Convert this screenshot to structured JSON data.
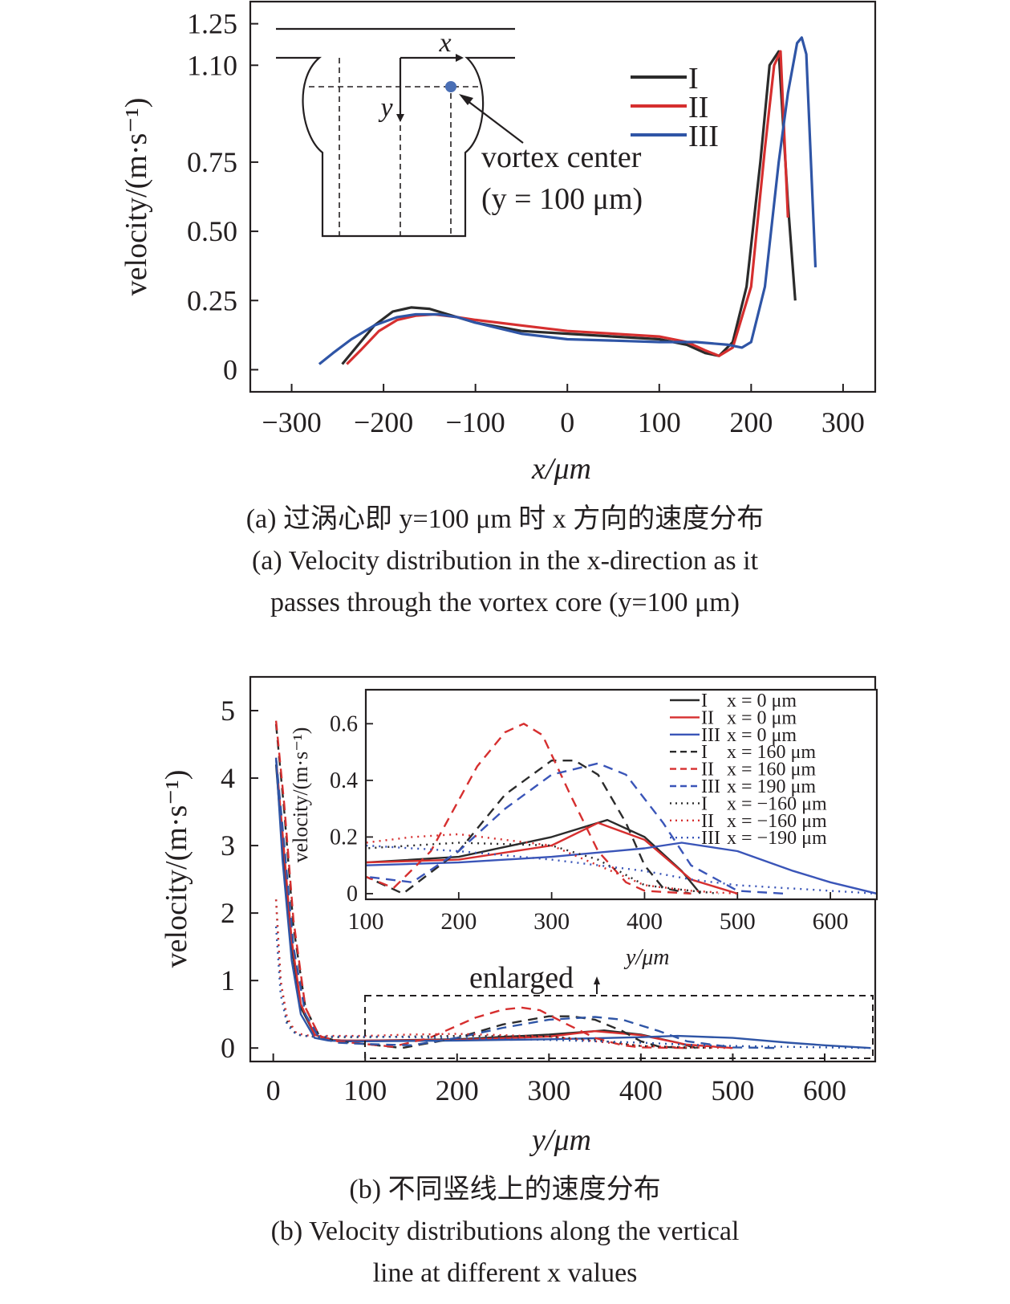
{
  "colors": {
    "I": "#2b2b2b",
    "II": "#d62f2f",
    "III": "#2f55a6",
    "inset_III": "#3a55b8",
    "axis": "#231f20",
    "vortex_dot": "#4a6fb5"
  },
  "captions": {
    "a_cn": "(a) 过涡心即 y=100 μm 时 x 方向的速度分布",
    "a_en_1": "(a) Velocity distribution in the x-direction as it",
    "a_en_2": "passes through the vortex core (y=100 μm)",
    "b_cn": "(b) 不同竖线上的速度分布",
    "b_en_1": "(b) Velocity distributions along the vertical",
    "b_en_2": "line at different x values"
  },
  "chart_data": [
    {
      "type": "line",
      "title": "",
      "xlabel": "x/μm",
      "ylabel": "velocity/(m·s⁻¹)",
      "xlim": [
        -345,
        335
      ],
      "ylim": [
        -0.08,
        1.33
      ],
      "xticks": [
        -300,
        -200,
        -100,
        0,
        100,
        200,
        300
      ],
      "xtick_labels": [
        "−300",
        "−200",
        "−100",
        "0",
        "100",
        "200",
        "300"
      ],
      "yticks": [
        0,
        0.25,
        0.5,
        0.75,
        1.1,
        1.25
      ],
      "ytick_labels": [
        "0",
        "0.25",
        "0.50",
        "0.75",
        "1.10",
        "1.25"
      ],
      "legend": {
        "position": "top-right",
        "entries": [
          "I",
          "II",
          "III"
        ]
      },
      "inset_labels": {
        "x_axis": "x",
        "y_axis": "y",
        "annotation_1": "vortex center",
        "annotation_2": "(y = 100 μm)"
      },
      "series": [
        {
          "name": "I",
          "x": [
            -245,
            -230,
            -210,
            -190,
            -170,
            -150,
            -130,
            -100,
            -50,
            0,
            50,
            100,
            130,
            150,
            165,
            180,
            195,
            210,
            220,
            230,
            240,
            248
          ],
          "y": [
            0.02,
            0.08,
            0.16,
            0.21,
            0.225,
            0.22,
            0.2,
            0.17,
            0.14,
            0.13,
            0.12,
            0.11,
            0.09,
            0.06,
            0.05,
            0.1,
            0.3,
            0.75,
            1.1,
            1.15,
            0.6,
            0.25
          ]
        },
        {
          "name": "II",
          "x": [
            -240,
            -225,
            -205,
            -185,
            -165,
            -145,
            -120,
            -100,
            -50,
            0,
            50,
            100,
            130,
            150,
            165,
            180,
            200,
            215,
            225,
            232,
            240
          ],
          "y": [
            0.02,
            0.07,
            0.14,
            0.18,
            0.195,
            0.2,
            0.19,
            0.18,
            0.16,
            0.14,
            0.13,
            0.12,
            0.1,
            0.07,
            0.05,
            0.08,
            0.3,
            0.8,
            1.1,
            1.15,
            0.55
          ]
        },
        {
          "name": "III",
          "x": [
            -270,
            -255,
            -235,
            -210,
            -185,
            -165,
            -140,
            -120,
            -100,
            -50,
            0,
            50,
            100,
            140,
            175,
            190,
            200,
            215,
            230,
            240,
            250,
            255,
            260,
            270
          ],
          "y": [
            0.02,
            0.06,
            0.11,
            0.16,
            0.19,
            0.2,
            0.2,
            0.19,
            0.17,
            0.13,
            0.11,
            0.105,
            0.1,
            0.1,
            0.09,
            0.08,
            0.1,
            0.3,
            0.75,
            1.0,
            1.18,
            1.2,
            1.14,
            0.37
          ]
        }
      ]
    },
    {
      "type": "line",
      "title": "",
      "xlabel": "y/μm",
      "ylabel": "velocity/(m·s⁻¹)",
      "xlim": [
        -25,
        655
      ],
      "ylim": [
        -0.2,
        5.5
      ],
      "xticks": [
        0,
        100,
        200,
        300,
        400,
        500,
        600
      ],
      "yticks": [
        0,
        1,
        2,
        3,
        4,
        5
      ],
      "annotation": "enlarged",
      "series": [
        {
          "name": "",
          "style": "solid",
          "color": "I",
          "x": [
            3,
            10,
            20,
            30,
            45,
            60,
            80,
            100,
            200,
            300,
            360,
            400,
            440,
            460
          ],
          "y": [
            4.2,
            3.0,
            1.5,
            0.6,
            0.2,
            0.12,
            0.11,
            0.11,
            0.13,
            0.2,
            0.26,
            0.2,
            0.08,
            0.0
          ]
        },
        {
          "name": "",
          "style": "solid",
          "color": "II",
          "x": [
            3,
            10,
            20,
            30,
            45,
            60,
            80,
            100,
            200,
            300,
            350,
            400,
            450,
            500
          ],
          "y": [
            4.3,
            3.2,
            1.6,
            0.65,
            0.2,
            0.12,
            0.11,
            0.11,
            0.12,
            0.17,
            0.25,
            0.19,
            0.05,
            0.0
          ]
        },
        {
          "name": "",
          "style": "solid",
          "color": "III",
          "x": [
            3,
            10,
            20,
            30,
            45,
            60,
            80,
            100,
            200,
            300,
            400,
            440,
            500,
            560,
            600,
            650
          ],
          "y": [
            4.3,
            2.8,
            1.3,
            0.5,
            0.15,
            0.11,
            0.1,
            0.1,
            0.11,
            0.13,
            0.16,
            0.18,
            0.15,
            0.08,
            0.04,
            0.0
          ]
        },
        {
          "name": "",
          "style": "dashed",
          "color": "I",
          "x": [
            3,
            12,
            22,
            35,
            50,
            70,
            100,
            140,
            200,
            250,
            300,
            325,
            350,
            380,
            400,
            420,
            450
          ],
          "y": [
            4.8,
            3.5,
            1.8,
            0.6,
            0.18,
            0.1,
            0.06,
            0.0,
            0.15,
            0.35,
            0.47,
            0.47,
            0.42,
            0.25,
            0.1,
            0.02,
            0.0
          ]
        },
        {
          "name": "",
          "style": "dashed",
          "color": "II",
          "x": [
            3,
            12,
            22,
            35,
            50,
            70,
            100,
            130,
            170,
            220,
            250,
            270,
            290,
            320,
            350,
            380,
            400,
            450
          ],
          "y": [
            4.85,
            3.6,
            1.9,
            0.6,
            0.18,
            0.1,
            0.06,
            0.02,
            0.15,
            0.45,
            0.57,
            0.6,
            0.56,
            0.35,
            0.15,
            0.04,
            0.01,
            0.0
          ]
        },
        {
          "name": "",
          "style": "dashed",
          "color": "III",
          "x": [
            3,
            12,
            22,
            35,
            50,
            70,
            100,
            150,
            200,
            250,
            300,
            350,
            380,
            420,
            450,
            500,
            550
          ],
          "y": [
            4.3,
            3.0,
            1.5,
            0.5,
            0.15,
            0.08,
            0.06,
            0.04,
            0.15,
            0.3,
            0.42,
            0.46,
            0.42,
            0.25,
            0.1,
            0.01,
            0.0
          ]
        },
        {
          "name": "",
          "style": "dotted",
          "color": "I",
          "x": [
            3,
            8,
            15,
            25,
            40,
            60,
            100,
            200,
            300,
            350,
            400,
            450,
            480
          ],
          "y": [
            2.2,
            1.0,
            0.4,
            0.2,
            0.17,
            0.16,
            0.16,
            0.18,
            0.17,
            0.12,
            0.03,
            0.01,
            0.0
          ]
        },
        {
          "name": "",
          "style": "dotted",
          "color": "II",
          "x": [
            3,
            8,
            15,
            25,
            40,
            60,
            100,
            150,
            200,
            300,
            350,
            400,
            450,
            500
          ],
          "y": [
            2.2,
            1.0,
            0.45,
            0.22,
            0.18,
            0.18,
            0.18,
            0.2,
            0.21,
            0.17,
            0.1,
            0.03,
            0.01,
            0.0
          ]
        },
        {
          "name": "",
          "style": "dotted",
          "color": "III",
          "x": [
            3,
            8,
            15,
            25,
            40,
            60,
            100,
            200,
            300,
            400,
            450,
            500,
            550,
            600,
            650
          ],
          "y": [
            1.8,
            0.8,
            0.35,
            0.2,
            0.17,
            0.17,
            0.17,
            0.15,
            0.12,
            0.08,
            0.05,
            0.03,
            0.02,
            0.01,
            0.0
          ]
        }
      ],
      "inset": {
        "xlim": [
          100,
          650
        ],
        "ylim": [
          -0.02,
          0.72
        ],
        "xticks": [
          100,
          200,
          300,
          400,
          500,
          600
        ],
        "yticks": [
          0,
          0.2,
          0.4,
          0.6
        ],
        "ytick_labels": [
          "0",
          "0.2",
          "0.4",
          "0.6"
        ],
        "xlabel": "y/μm",
        "ylabel": "velocity/(m·s⁻¹)",
        "legend": [
          {
            "name": "I",
            "detail": "x = 0 μm",
            "style": "solid",
            "color": "I"
          },
          {
            "name": "II",
            "detail": "x = 0 μm",
            "style": "solid",
            "color": "II"
          },
          {
            "name": "III",
            "detail": "x = 0 μm",
            "style": "solid",
            "color": "inset_III"
          },
          {
            "name": "I",
            "detail": "x = 160 μm",
            "style": "dashed",
            "color": "I"
          },
          {
            "name": "II",
            "detail": "x = 160 μm",
            "style": "dashed",
            "color": "II"
          },
          {
            "name": "III",
            "detail": "x = 190 μm",
            "style": "dashed",
            "color": "inset_III"
          },
          {
            "name": "I",
            "detail": "x = −160 μm",
            "style": "dotted",
            "color": "I"
          },
          {
            "name": "II",
            "detail": "x = −160 μm",
            "style": "dotted",
            "color": "II"
          },
          {
            "name": "III",
            "detail": "x = −190 μm",
            "style": "dotted",
            "color": "inset_III"
          }
        ]
      }
    }
  ]
}
